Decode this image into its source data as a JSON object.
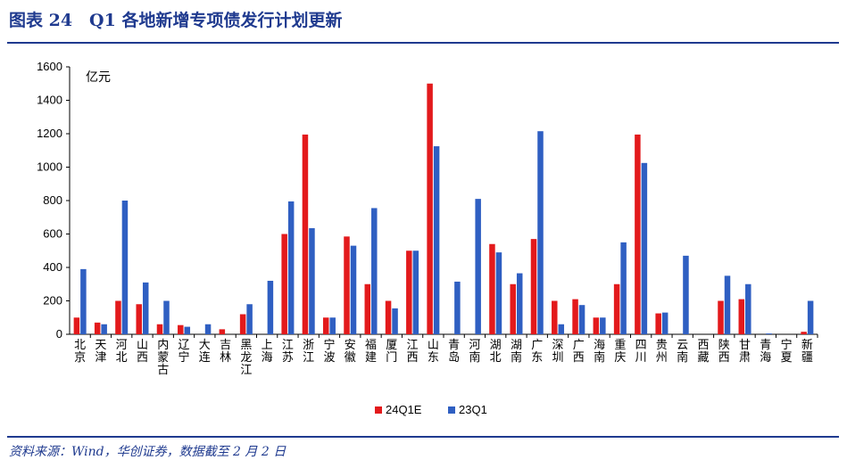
{
  "title": "图表 24　Q1 各地新增专项债发行计划更新",
  "source": "资料来源：Wind，华创证券，数据截至 2 月 2 日",
  "colors": {
    "series_1": "#e31a1c",
    "series_2": "#2f5fc2",
    "brand": "#1f3a8f"
  },
  "chart_data": {
    "type": "bar",
    "unit": "亿元",
    "ylim": [
      0,
      1600
    ],
    "yticks": [
      0,
      200,
      400,
      600,
      800,
      1000,
      1200,
      1400,
      1600
    ],
    "grid": false,
    "legend_position": "bottom-center",
    "categories": [
      "北京",
      "天津",
      "河北",
      "山西",
      "内蒙古",
      "辽宁",
      "大连",
      "吉林",
      "黑龙江",
      "上海",
      "江苏",
      "浙江",
      "宁波",
      "安徽",
      "福建",
      "厦门",
      "江西",
      "山东",
      "青岛",
      "河南",
      "湖北",
      "湖南",
      "广东",
      "深圳",
      "广西",
      "海南",
      "重庆",
      "四川",
      "贵州",
      "云南",
      "西藏",
      "陕西",
      "甘肃",
      "青海",
      "宁夏",
      "新疆"
    ],
    "series": [
      {
        "name": "24Q1E",
        "values": [
          100,
          70,
          200,
          180,
          60,
          55,
          0,
          30,
          120,
          0,
          600,
          1195,
          100,
          585,
          300,
          200,
          500,
          1500,
          0,
          0,
          540,
          300,
          570,
          200,
          210,
          100,
          300,
          1195,
          125,
          0,
          0,
          200,
          210,
          0,
          0,
          15
        ]
      },
      {
        "name": "23Q1",
        "values": [
          390,
          60,
          800,
          310,
          200,
          45,
          60,
          0,
          180,
          320,
          795,
          635,
          100,
          530,
          755,
          155,
          500,
          1125,
          315,
          810,
          490,
          365,
          1215,
          60,
          175,
          100,
          550,
          1025,
          130,
          470,
          0,
          350,
          300,
          5,
          0,
          200
        ]
      }
    ]
  }
}
